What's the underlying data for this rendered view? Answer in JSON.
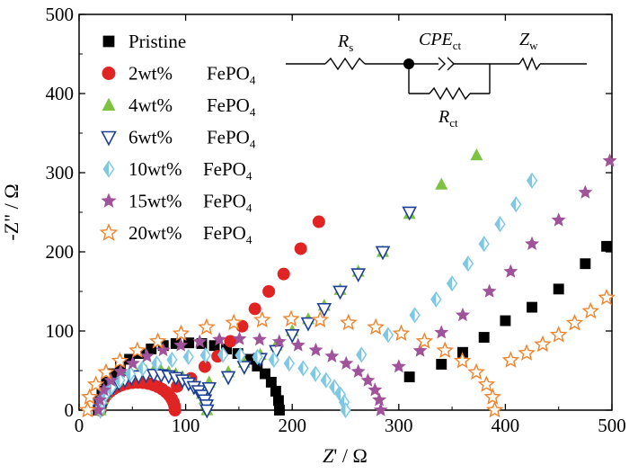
{
  "chart_data": {
    "type": "scatter",
    "xlabel_pre": "Z",
    "xlabel_post": "' / Ω",
    "ylabel": "-Z\" / Ω",
    "xlim": [
      0,
      500
    ],
    "ylim": [
      0,
      500
    ],
    "x_ticks": [
      0,
      100,
      200,
      300,
      400,
      500
    ],
    "y_ticks": [
      0,
      100,
      200,
      300,
      400,
      500
    ],
    "legend": {
      "placement": "top-left"
    },
    "inset_circuit": {
      "rs_main": "R",
      "rs_sub": "s",
      "cpe_main": "CPE",
      "cpe_sub": "ct",
      "zw_main": "Z",
      "zw_sub": "w",
      "rct_main": "R",
      "rct_sub": "ct"
    },
    "series": [
      {
        "name": "Pristine",
        "formula": "",
        "sub": "",
        "marker": "square",
        "color": "#000000",
        "Rs": 18,
        "Rct": 170,
        "arcmax": 85,
        "wx": [
          310,
          340,
          360,
          380,
          400,
          425,
          450,
          475,
          495
        ],
        "wy": [
          42,
          58,
          73,
          92,
          113,
          130,
          153,
          185,
          207
        ]
      },
      {
        "name": "2wt%",
        "formula": "FePO",
        "sub": "4",
        "marker": "circle",
        "color": "#e02424",
        "Rs": 20,
        "Rct": 70,
        "arcmax": 35,
        "wx": [
          92,
          105,
          118,
          130,
          142,
          153,
          165,
          178,
          192,
          208,
          225
        ],
        "wy": [
          30,
          40,
          55,
          68,
          87,
          106,
          128,
          150,
          172,
          204,
          238
        ]
      },
      {
        "name": "4wt%",
        "formula": "FePO",
        "sub": "4",
        "marker": "triangle-up",
        "color": "#7ec242",
        "Rs": 20,
        "Rct": 100,
        "arcmax": 50,
        "wx": [
          122,
          140,
          155,
          170,
          185,
          200,
          215,
          230,
          245,
          262,
          285,
          310,
          340,
          373
        ],
        "wy": [
          35,
          48,
          60,
          70,
          82,
          100,
          115,
          132,
          152,
          175,
          200,
          248,
          285,
          322
        ]
      },
      {
        "name": "6wt%",
        "formula": "FePO",
        "sub": "4",
        "marker": "triangle-down-open",
        "color": "#1b3f94",
        "Rs": 20,
        "Rct": 100,
        "arcmax": 45,
        "wx": [
          122,
          140,
          155,
          170,
          185,
          200,
          215,
          230,
          245,
          262,
          285,
          310
        ],
        "wy": [
          28,
          42,
          55,
          65,
          75,
          95,
          110,
          128,
          150,
          172,
          200,
          250
        ]
      },
      {
        "name": "10wt%",
        "formula": "FePO",
        "sub": "4",
        "marker": "diamond-half",
        "color": "#7ec8e3",
        "Rs": 20,
        "Rct": 230,
        "arcmax": 70,
        "wx": [
          265,
          290,
          315,
          335,
          350,
          365,
          380,
          395,
          410,
          425
        ],
        "wy": [
          70,
          95,
          120,
          140,
          160,
          185,
          210,
          235,
          260,
          290
        ]
      },
      {
        "name": "15wt%",
        "formula": "FePO",
        "sub": "4",
        "marker": "star",
        "color": "#a0529a",
        "Rs": 18,
        "Rct": 265,
        "arcmax": 90,
        "wx": [
          300,
          320,
          340,
          360,
          385,
          405,
          425,
          450,
          475,
          498
        ],
        "wy": [
          55,
          75,
          98,
          120,
          150,
          175,
          210,
          240,
          275,
          315
        ]
      },
      {
        "name": "20wt%",
        "formula": "FePO",
        "sub": "4",
        "marker": "star-open",
        "color": "#f0822a",
        "Rs": 8,
        "Rct": 382,
        "arcmax": 115,
        "wx": [
          405,
          420,
          435,
          450,
          465,
          480,
          495
        ],
        "wy": [
          63,
          72,
          83,
          95,
          110,
          125,
          142
        ]
      }
    ]
  }
}
